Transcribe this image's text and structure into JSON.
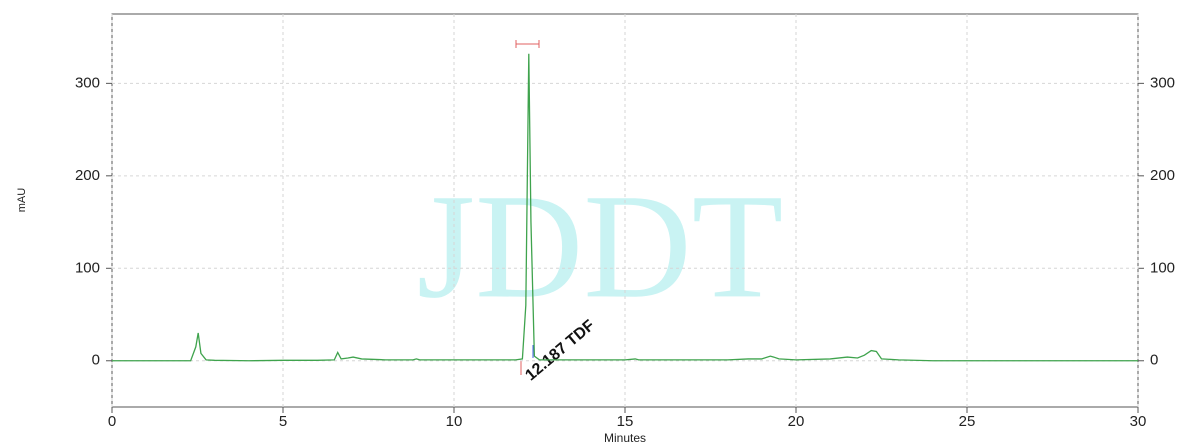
{
  "chart_data": {
    "type": "line",
    "watermark": "JDDT",
    "ylabel": "mAU",
    "xlabel": "Minutes",
    "annotation": "12.187  TDF",
    "x": [
      0,
      2.3,
      2.45,
      2.52,
      2.6,
      2.75,
      3,
      4,
      5,
      6,
      6.5,
      6.6,
      6.7,
      6.9,
      7.05,
      7.3,
      8,
      8.8,
      8.9,
      9,
      10,
      11,
      11.8,
      12.0,
      12.1,
      12.187,
      12.25,
      12.35,
      12.5,
      13,
      14,
      15,
      15.3,
      15.4,
      16,
      17,
      18,
      18.6,
      19,
      19.25,
      19.35,
      19.5,
      20,
      21,
      21.5,
      21.8,
      22.0,
      22.2,
      22.35,
      22.5,
      23,
      24,
      25,
      26,
      27,
      28,
      29,
      30
    ],
    "series": [
      {
        "color": "#3fa34d",
        "values": [
          0,
          0,
          15,
          30,
          8,
          1,
          0.5,
          0,
          0.5,
          0.5,
          1,
          9,
          2,
          3,
          4,
          2,
          1,
          1,
          2,
          1,
          1,
          1,
          1,
          2,
          60,
          332,
          150,
          5,
          1,
          1,
          1,
          1,
          2,
          1,
          1,
          1,
          1,
          2,
          2,
          5,
          4,
          2,
          1,
          2,
          4,
          3,
          6,
          11,
          10,
          2,
          1,
          0,
          0,
          0,
          0,
          0,
          0,
          0
        ]
      }
    ],
    "xlim": [
      0,
      30
    ],
    "xticks": [
      0,
      5,
      10,
      15,
      20,
      25,
      30
    ],
    "ylim": [
      -50,
      375
    ],
    "yticks": [
      0,
      100,
      200,
      300
    ],
    "grid": true
  }
}
